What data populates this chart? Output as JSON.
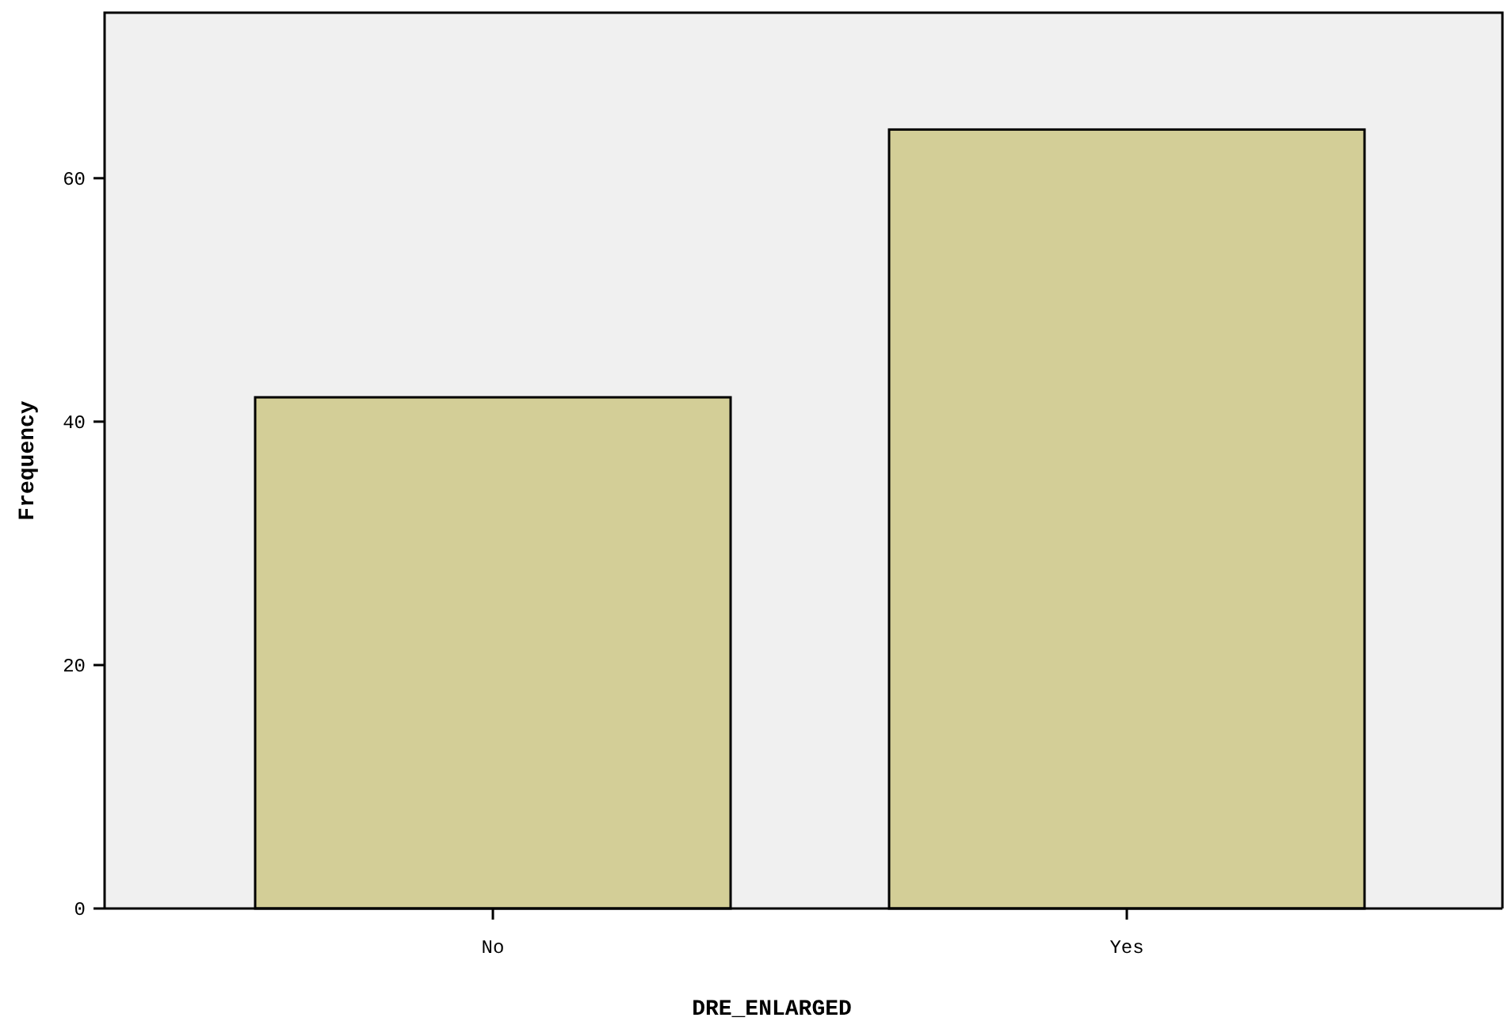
{
  "chart_data": {
    "type": "bar",
    "xlabel": "DRE_ENLARGED",
    "ylabel": "Frequency",
    "categories": [
      "No",
      "Yes"
    ],
    "values": [
      42,
      64
    ],
    "color": "#d3ce97",
    "ylim": [
      0,
      73.6
    ],
    "yticks": [
      0,
      20,
      40,
      60
    ],
    "grid": false
  }
}
